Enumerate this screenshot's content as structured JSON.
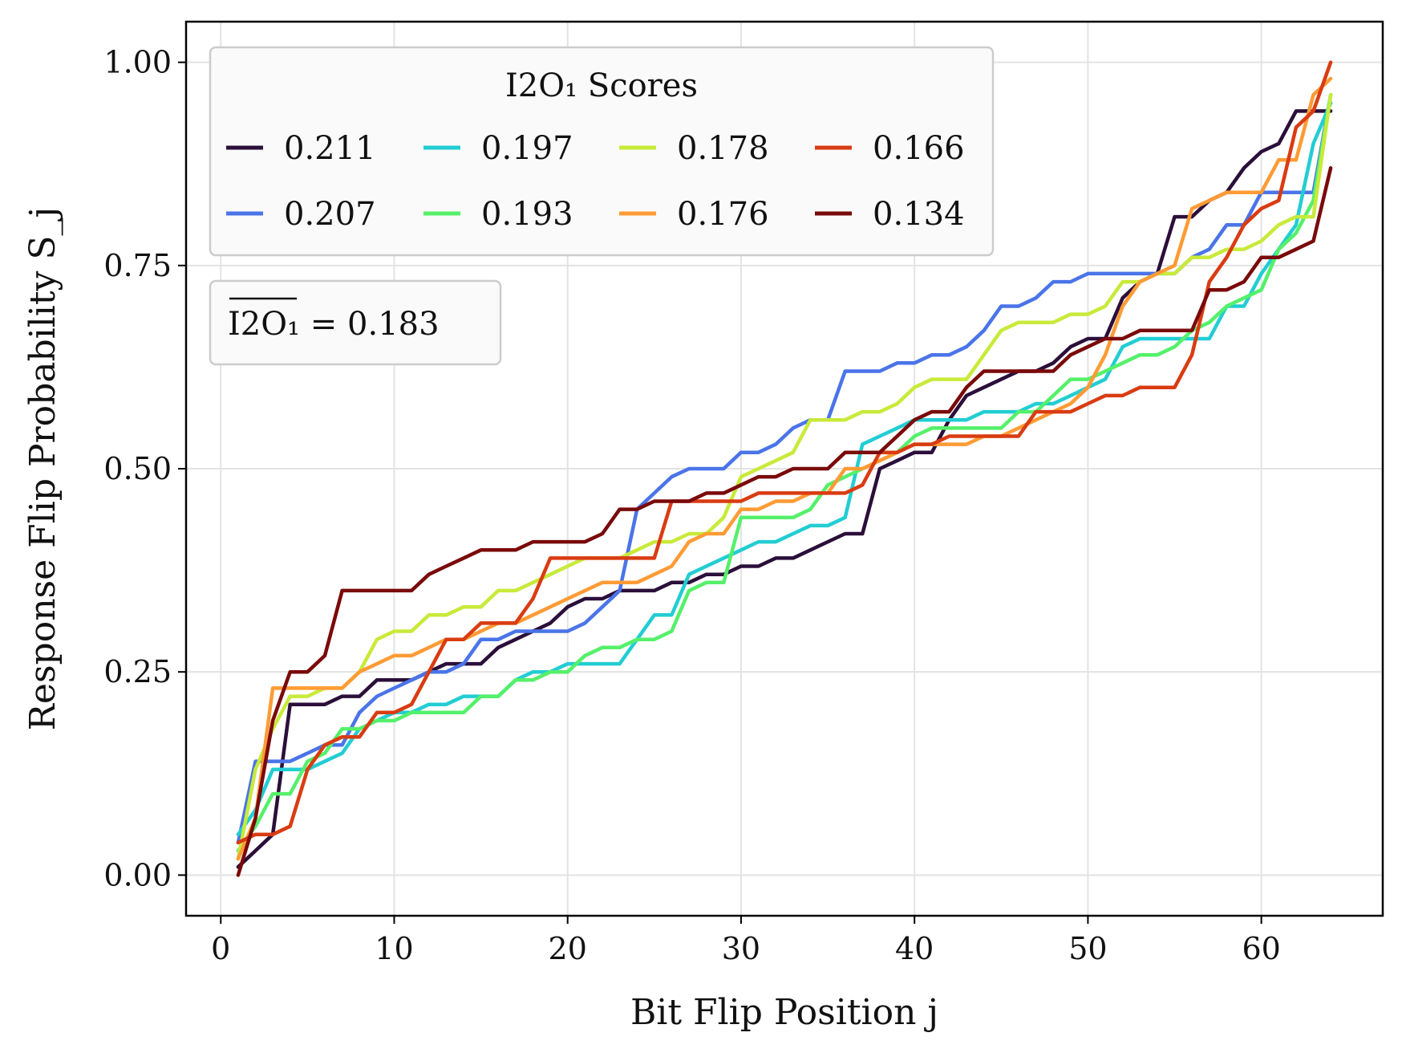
{
  "chart_data": {
    "type": "line",
    "xlabel": "Bit Flip Position j",
    "ylabel": "Response Flip Probability S_j",
    "xlim": [
      -2,
      67
    ],
    "ylim": [
      -0.05,
      1.05
    ],
    "x_ticks": [
      0,
      10,
      20,
      30,
      40,
      50,
      60
    ],
    "x_tick_labels": [
      "0",
      "10",
      "20",
      "30",
      "40",
      "50",
      "60"
    ],
    "y_ticks": [
      0.0,
      0.25,
      0.5,
      0.75,
      1.0
    ],
    "y_tick_labels": [
      "0.00",
      "0.25",
      "0.50",
      "0.75",
      "1.00"
    ],
    "grid": true,
    "legend": {
      "title": "I2O₁ Scores",
      "placement": "top-left",
      "columns": 4
    },
    "annotation": "I2O₁ = 0.183",
    "x": [
      1,
      2,
      3,
      4,
      5,
      6,
      7,
      8,
      9,
      10,
      11,
      12,
      13,
      14,
      15,
      16,
      17,
      18,
      19,
      20,
      21,
      22,
      23,
      24,
      25,
      26,
      27,
      28,
      29,
      30,
      31,
      32,
      33,
      34,
      35,
      36,
      37,
      38,
      39,
      40,
      41,
      42,
      43,
      44,
      45,
      46,
      47,
      48,
      49,
      50,
      51,
      52,
      53,
      54,
      55,
      56,
      57,
      58,
      59,
      60,
      61,
      62,
      63,
      64
    ],
    "series": [
      {
        "name": "0.211",
        "color": "#2b0f3a",
        "values": [
          0.01,
          0.03,
          0.05,
          0.21,
          0.21,
          0.21,
          0.22,
          0.22,
          0.24,
          0.24,
          0.24,
          0.25,
          0.26,
          0.26,
          0.26,
          0.28,
          0.29,
          0.3,
          0.31,
          0.33,
          0.34,
          0.34,
          0.35,
          0.35,
          0.35,
          0.36,
          0.36,
          0.37,
          0.37,
          0.38,
          0.38,
          0.39,
          0.39,
          0.4,
          0.41,
          0.42,
          0.42,
          0.5,
          0.51,
          0.52,
          0.52,
          0.56,
          0.59,
          0.6,
          0.61,
          0.62,
          0.62,
          0.63,
          0.65,
          0.66,
          0.66,
          0.71,
          0.73,
          0.74,
          0.81,
          0.81,
          0.83,
          0.84,
          0.87,
          0.89,
          0.9,
          0.94,
          0.94,
          0.94
        ]
      },
      {
        "name": "0.207",
        "color": "#4a74e8",
        "values": [
          0.04,
          0.14,
          0.14,
          0.14,
          0.15,
          0.16,
          0.16,
          0.2,
          0.22,
          0.23,
          0.24,
          0.25,
          0.25,
          0.26,
          0.29,
          0.29,
          0.3,
          0.3,
          0.3,
          0.3,
          0.31,
          0.33,
          0.35,
          0.45,
          0.47,
          0.49,
          0.5,
          0.5,
          0.5,
          0.52,
          0.52,
          0.53,
          0.55,
          0.56,
          0.56,
          0.62,
          0.62,
          0.62,
          0.63,
          0.63,
          0.64,
          0.64,
          0.65,
          0.67,
          0.7,
          0.7,
          0.71,
          0.73,
          0.73,
          0.74,
          0.74,
          0.74,
          0.74,
          0.74,
          0.74,
          0.76,
          0.77,
          0.8,
          0.8,
          0.84,
          0.84,
          0.84,
          0.84,
          0.96
        ]
      },
      {
        "name": "0.197",
        "color": "#22cdd3",
        "values": [
          0.05,
          0.08,
          0.13,
          0.13,
          0.13,
          0.14,
          0.15,
          0.18,
          0.19,
          0.2,
          0.2,
          0.21,
          0.21,
          0.22,
          0.22,
          0.22,
          0.24,
          0.25,
          0.25,
          0.26,
          0.26,
          0.26,
          0.26,
          0.29,
          0.32,
          0.32,
          0.37,
          0.38,
          0.39,
          0.4,
          0.41,
          0.41,
          0.42,
          0.43,
          0.43,
          0.44,
          0.53,
          0.54,
          0.55,
          0.56,
          0.56,
          0.56,
          0.56,
          0.57,
          0.57,
          0.57,
          0.58,
          0.58,
          0.59,
          0.6,
          0.61,
          0.65,
          0.66,
          0.66,
          0.66,
          0.66,
          0.66,
          0.7,
          0.7,
          0.74,
          0.77,
          0.8,
          0.9,
          0.95
        ]
      },
      {
        "name": "0.193",
        "color": "#55f06a",
        "values": [
          0.03,
          0.06,
          0.1,
          0.1,
          0.14,
          0.15,
          0.18,
          0.18,
          0.19,
          0.19,
          0.2,
          0.2,
          0.2,
          0.2,
          0.22,
          0.22,
          0.24,
          0.24,
          0.25,
          0.25,
          0.27,
          0.28,
          0.28,
          0.29,
          0.29,
          0.3,
          0.35,
          0.36,
          0.36,
          0.44,
          0.44,
          0.44,
          0.44,
          0.45,
          0.48,
          0.49,
          0.5,
          0.51,
          0.52,
          0.54,
          0.55,
          0.55,
          0.55,
          0.55,
          0.55,
          0.57,
          0.57,
          0.59,
          0.61,
          0.61,
          0.62,
          0.63,
          0.64,
          0.64,
          0.65,
          0.67,
          0.68,
          0.7,
          0.71,
          0.72,
          0.77,
          0.79,
          0.83,
          0.96
        ]
      },
      {
        "name": "0.178",
        "color": "#c8ea3a",
        "values": [
          0.02,
          0.13,
          0.18,
          0.22,
          0.22,
          0.23,
          0.23,
          0.25,
          0.29,
          0.3,
          0.3,
          0.32,
          0.32,
          0.33,
          0.33,
          0.35,
          0.35,
          0.36,
          0.37,
          0.38,
          0.39,
          0.39,
          0.39,
          0.4,
          0.41,
          0.41,
          0.42,
          0.42,
          0.44,
          0.49,
          0.5,
          0.51,
          0.52,
          0.56,
          0.56,
          0.56,
          0.57,
          0.57,
          0.58,
          0.6,
          0.61,
          0.61,
          0.61,
          0.64,
          0.67,
          0.68,
          0.68,
          0.68,
          0.69,
          0.69,
          0.7,
          0.73,
          0.73,
          0.74,
          0.74,
          0.76,
          0.76,
          0.77,
          0.77,
          0.78,
          0.8,
          0.81,
          0.81,
          0.96
        ]
      },
      {
        "name": "0.176",
        "color": "#ff9b35",
        "values": [
          0.02,
          0.07,
          0.23,
          0.23,
          0.23,
          0.23,
          0.23,
          0.25,
          0.26,
          0.27,
          0.27,
          0.28,
          0.29,
          0.29,
          0.3,
          0.31,
          0.31,
          0.32,
          0.33,
          0.34,
          0.35,
          0.36,
          0.36,
          0.36,
          0.37,
          0.38,
          0.41,
          0.42,
          0.42,
          0.45,
          0.45,
          0.46,
          0.46,
          0.47,
          0.47,
          0.5,
          0.5,
          0.51,
          0.52,
          0.53,
          0.53,
          0.53,
          0.53,
          0.54,
          0.54,
          0.55,
          0.56,
          0.57,
          0.58,
          0.6,
          0.64,
          0.7,
          0.73,
          0.74,
          0.75,
          0.82,
          0.83,
          0.84,
          0.84,
          0.84,
          0.88,
          0.88,
          0.96,
          0.98
        ]
      },
      {
        "name": "0.166",
        "color": "#d93c12",
        "values": [
          0.04,
          0.05,
          0.05,
          0.06,
          0.13,
          0.16,
          0.17,
          0.17,
          0.2,
          0.2,
          0.21,
          0.25,
          0.29,
          0.29,
          0.31,
          0.31,
          0.31,
          0.34,
          0.39,
          0.39,
          0.39,
          0.39,
          0.39,
          0.39,
          0.39,
          0.46,
          0.46,
          0.46,
          0.46,
          0.46,
          0.47,
          0.47,
          0.47,
          0.47,
          0.47,
          0.47,
          0.48,
          0.52,
          0.52,
          0.53,
          0.53,
          0.54,
          0.54,
          0.54,
          0.54,
          0.54,
          0.57,
          0.57,
          0.57,
          0.58,
          0.59,
          0.59,
          0.6,
          0.6,
          0.6,
          0.64,
          0.73,
          0.76,
          0.8,
          0.82,
          0.83,
          0.92,
          0.94,
          1.0
        ]
      },
      {
        "name": "0.134",
        "color": "#7a0a0a",
        "values": [
          0.0,
          0.07,
          0.19,
          0.25,
          0.25,
          0.27,
          0.35,
          0.35,
          0.35,
          0.35,
          0.35,
          0.37,
          0.38,
          0.39,
          0.4,
          0.4,
          0.4,
          0.41,
          0.41,
          0.41,
          0.41,
          0.42,
          0.45,
          0.45,
          0.46,
          0.46,
          0.46,
          0.47,
          0.47,
          0.48,
          0.49,
          0.49,
          0.5,
          0.5,
          0.5,
          0.52,
          0.52,
          0.52,
          0.54,
          0.56,
          0.57,
          0.57,
          0.6,
          0.62,
          0.62,
          0.62,
          0.62,
          0.62,
          0.64,
          0.65,
          0.66,
          0.66,
          0.67,
          0.67,
          0.67,
          0.67,
          0.72,
          0.72,
          0.73,
          0.76,
          0.76,
          0.77,
          0.78,
          0.87
        ]
      }
    ]
  }
}
